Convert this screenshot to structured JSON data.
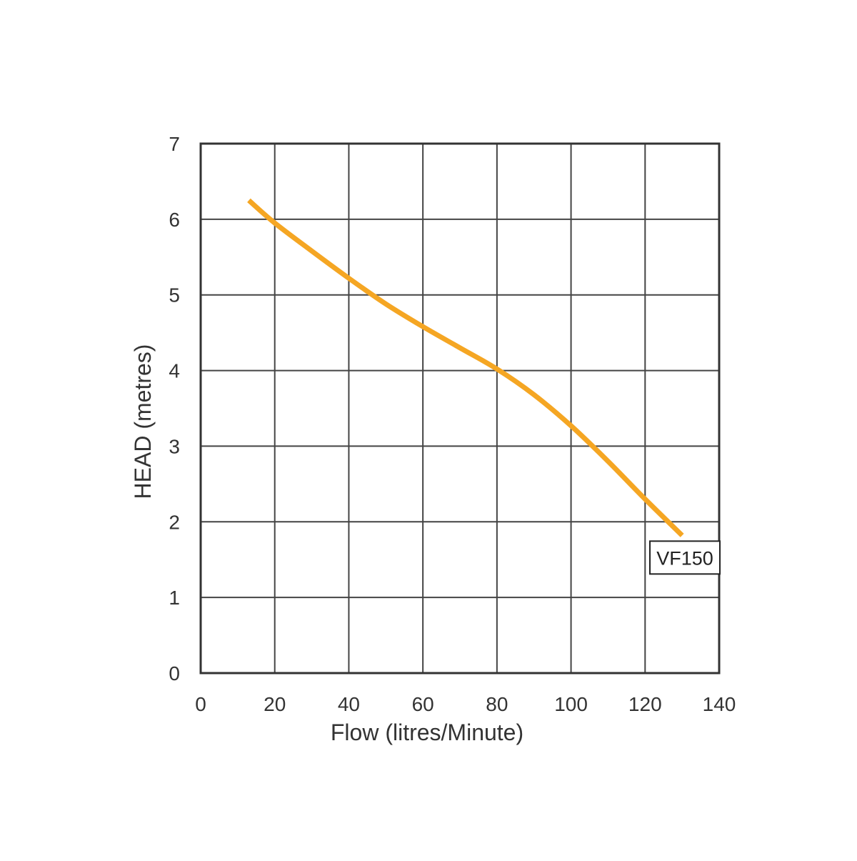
{
  "chart_data": {
    "type": "line",
    "title": "",
    "xlabel": "Flow (litres/Minute)",
    "ylabel": "HEAD (metres)",
    "xlim": [
      0,
      140
    ],
    "ylim": [
      0,
      7
    ],
    "x_ticks": [
      0,
      20,
      40,
      60,
      80,
      100,
      120,
      140
    ],
    "y_ticks": [
      0,
      1,
      2,
      3,
      4,
      5,
      6,
      7
    ],
    "grid": true,
    "series": [
      {
        "name": "VF150",
        "color": "#F5A623",
        "x": [
          13,
          20,
          30,
          40,
          50,
          60,
          70,
          80,
          90,
          100,
          110,
          120,
          130
        ],
        "y": [
          6.25,
          5.95,
          5.58,
          5.22,
          4.88,
          4.58,
          4.3,
          4.02,
          3.68,
          3.27,
          2.8,
          2.3,
          1.82
        ]
      }
    ]
  }
}
